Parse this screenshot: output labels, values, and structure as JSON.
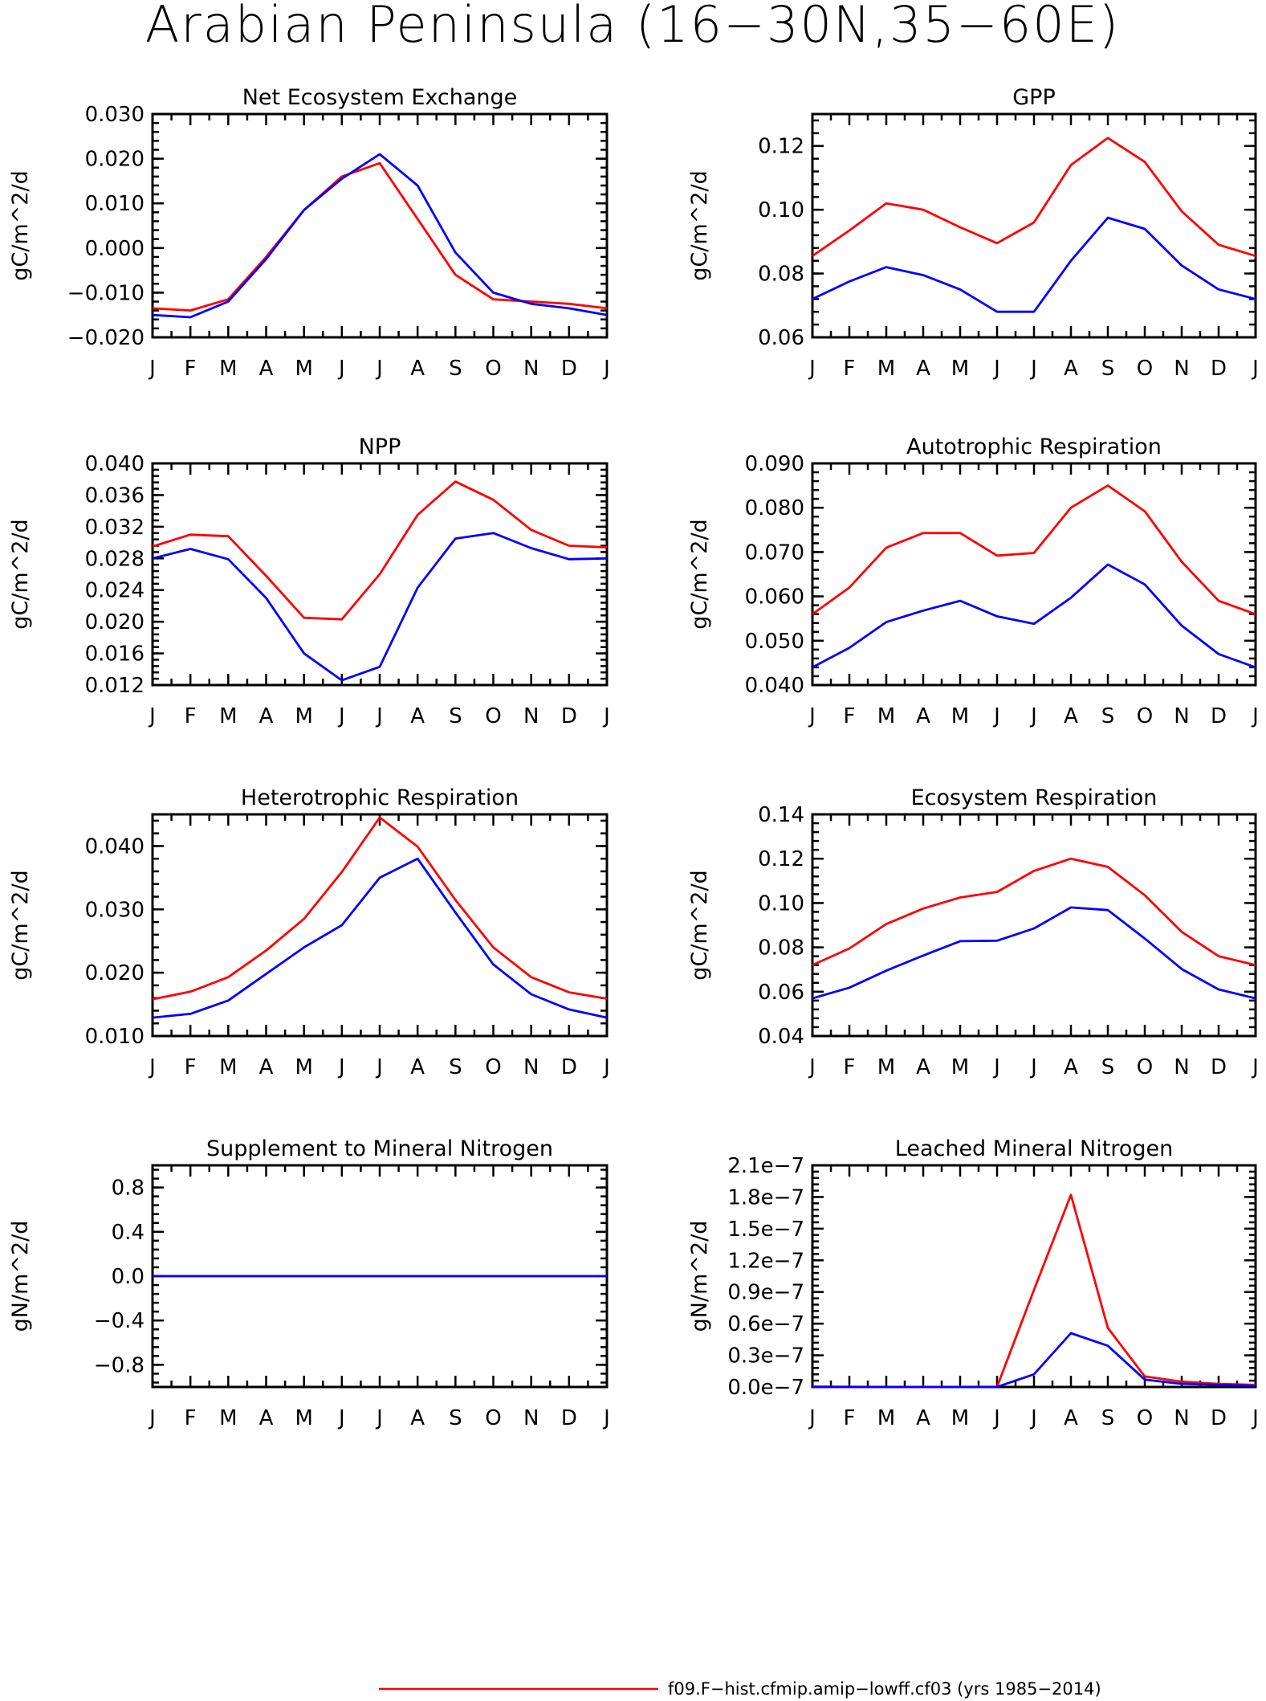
{
  "title": "Arabian Peninsula (16−30N,35−60E)",
  "colors": {
    "red": "#ff0000",
    "blue": "#0000ff",
    "axis": "#000000"
  },
  "legend": [
    {
      "label": "f09.F−hist.cfmip.amip−lowff.cf03 (yrs 1985−2014)",
      "color": "#ff0000"
    }
  ],
  "chart_data": [
    {
      "type": "line",
      "title": "Net Ecosystem Exchange",
      "ylabel": "gC/m^2/d",
      "categories": [
        "J",
        "F",
        "M",
        "A",
        "M",
        "J",
        "J",
        "A",
        "S",
        "O",
        "N",
        "D",
        "J"
      ],
      "ylim": [
        -0.02,
        0.03
      ],
      "yticks": [
        -0.02,
        -0.01,
        0.0,
        0.01,
        0.02,
        0.03
      ],
      "ytick_labels": [
        "−0.020",
        "−0.010",
        "0.000",
        "0.010",
        "0.020",
        "0.030"
      ],
      "series": [
        {
          "color": "#ff0000",
          "values": [
            -0.0135,
            -0.014,
            -0.0115,
            -0.002,
            0.0085,
            0.016,
            0.019,
            0.0065,
            -0.006,
            -0.0115,
            -0.012,
            -0.0125,
            -0.0135
          ]
        },
        {
          "color": "#0000ff",
          "values": [
            -0.015,
            -0.0155,
            -0.012,
            -0.0025,
            0.0085,
            0.0155,
            0.021,
            0.014,
            -0.001,
            -0.01,
            -0.0125,
            -0.0135,
            -0.015
          ]
        }
      ]
    },
    {
      "type": "line",
      "title": "GPP",
      "ylabel": "gC/m^2/d",
      "categories": [
        "J",
        "F",
        "M",
        "A",
        "M",
        "J",
        "J",
        "A",
        "S",
        "O",
        "N",
        "D",
        "J"
      ],
      "ylim": [
        0.06,
        0.13
      ],
      "yticks": [
        0.06,
        0.08,
        0.1,
        0.12
      ],
      "ytick_labels": [
        "0.06",
        "0.08",
        "0.10",
        "0.12"
      ],
      "series": [
        {
          "color": "#ff0000",
          "values": [
            0.0855,
            0.0935,
            0.102,
            0.1,
            0.0945,
            0.0895,
            0.096,
            0.114,
            0.1225,
            0.115,
            0.0995,
            0.089,
            0.0855
          ]
        },
        {
          "color": "#0000ff",
          "values": [
            0.072,
            0.0775,
            0.082,
            0.0795,
            0.075,
            0.068,
            0.068,
            0.084,
            0.0975,
            0.094,
            0.0825,
            0.075,
            0.072
          ]
        }
      ]
    },
    {
      "type": "line",
      "title": "NPP",
      "ylabel": "gC/m^2/d",
      "categories": [
        "J",
        "F",
        "M",
        "A",
        "M",
        "J",
        "J",
        "A",
        "S",
        "O",
        "N",
        "D",
        "J"
      ],
      "ylim": [
        0.012,
        0.04
      ],
      "yticks": [
        0.012,
        0.016,
        0.02,
        0.024,
        0.028,
        0.032,
        0.036,
        0.04
      ],
      "ytick_labels": [
        "0.012",
        "0.016",
        "0.020",
        "0.024",
        "0.028",
        "0.032",
        "0.036",
        "0.040"
      ],
      "series": [
        {
          "color": "#ff0000",
          "values": [
            0.0295,
            0.031,
            0.0308,
            0.0258,
            0.0205,
            0.0203,
            0.026,
            0.0335,
            0.0377,
            0.0354,
            0.0316,
            0.0296,
            0.0294
          ]
        },
        {
          "color": "#0000ff",
          "values": [
            0.028,
            0.0292,
            0.0279,
            0.023,
            0.016,
            0.0126,
            0.0143,
            0.0243,
            0.0305,
            0.0312,
            0.0293,
            0.0279,
            0.028
          ]
        }
      ]
    },
    {
      "type": "line",
      "title": "Autotrophic Respiration",
      "ylabel": "gC/m^2/d",
      "categories": [
        "J",
        "F",
        "M",
        "A",
        "M",
        "J",
        "J",
        "A",
        "S",
        "O",
        "N",
        "D",
        "J"
      ],
      "ylim": [
        0.04,
        0.09
      ],
      "yticks": [
        0.04,
        0.05,
        0.06,
        0.07,
        0.08,
        0.09
      ],
      "ytick_labels": [
        "0.040",
        "0.050",
        "0.060",
        "0.070",
        "0.080",
        "0.090"
      ],
      "series": [
        {
          "color": "#ff0000",
          "values": [
            0.056,
            0.062,
            0.071,
            0.0743,
            0.0743,
            0.0692,
            0.0698,
            0.08,
            0.085,
            0.0792,
            0.0678,
            0.059,
            0.056
          ]
        },
        {
          "color": "#0000ff",
          "values": [
            0.044,
            0.0484,
            0.0542,
            0.0568,
            0.059,
            0.0555,
            0.0538,
            0.0597,
            0.0672,
            0.0627,
            0.0534,
            0.047,
            0.044
          ]
        }
      ]
    },
    {
      "type": "line",
      "title": "Heterotrophic Respiration",
      "ylabel": "gC/m^2/d",
      "categories": [
        "J",
        "F",
        "M",
        "A",
        "M",
        "J",
        "J",
        "A",
        "S",
        "O",
        "N",
        "D",
        "J"
      ],
      "ylim": [
        0.01,
        0.045
      ],
      "yticks": [
        0.01,
        0.02,
        0.03,
        0.04
      ],
      "ytick_labels": [
        "0.010",
        "0.020",
        "0.030",
        "0.040"
      ],
      "series": [
        {
          "color": "#ff0000",
          "values": [
            0.0158,
            0.017,
            0.0193,
            0.0235,
            0.0285,
            0.0359,
            0.0445,
            0.0399,
            0.0315,
            0.024,
            0.0193,
            0.0169,
            0.0159
          ]
        },
        {
          "color": "#0000ff",
          "values": [
            0.0129,
            0.0135,
            0.0156,
            0.0198,
            0.024,
            0.0275,
            0.035,
            0.038,
            0.0295,
            0.0213,
            0.0166,
            0.0142,
            0.0129
          ]
        }
      ]
    },
    {
      "type": "line",
      "title": "Ecosystem Respiration",
      "ylabel": "gC/m^2/d",
      "categories": [
        "J",
        "F",
        "M",
        "A",
        "M",
        "J",
        "J",
        "A",
        "S",
        "O",
        "N",
        "D",
        "J"
      ],
      "ylim": [
        0.04,
        0.14
      ],
      "yticks": [
        0.04,
        0.06,
        0.08,
        0.1,
        0.12,
        0.14
      ],
      "ytick_labels": [
        "0.04",
        "0.06",
        "0.08",
        "0.10",
        "0.12",
        "0.14"
      ],
      "series": [
        {
          "color": "#ff0000",
          "values": [
            0.072,
            0.0795,
            0.0905,
            0.0975,
            0.1025,
            0.105,
            0.1145,
            0.12,
            0.1163,
            0.1035,
            0.087,
            0.076,
            0.072
          ]
        },
        {
          "color": "#0000ff",
          "values": [
            0.057,
            0.0618,
            0.0695,
            0.0763,
            0.0828,
            0.083,
            0.0885,
            0.098,
            0.0968,
            0.084,
            0.0702,
            0.061,
            0.057
          ]
        }
      ]
    },
    {
      "type": "line",
      "title": "Supplement to Mineral Nitrogen",
      "ylabel": "gN/m^2/d",
      "categories": [
        "J",
        "F",
        "M",
        "A",
        "M",
        "J",
        "J",
        "A",
        "S",
        "O",
        "N",
        "D",
        "J"
      ],
      "ylim": [
        -1.0,
        1.0
      ],
      "yticks": [
        -0.8,
        -0.4,
        0.0,
        0.4,
        0.8
      ],
      "ytick_labels": [
        "−0.8",
        "−0.4",
        "0.0",
        "0.4",
        "0.8"
      ],
      "series": [
        {
          "color": "#ff0000",
          "values": [
            0,
            0,
            0,
            0,
            0,
            0,
            0,
            0,
            0,
            0,
            0,
            0,
            0
          ]
        },
        {
          "color": "#0000ff",
          "values": [
            0,
            0,
            0,
            0,
            0,
            0,
            0,
            0,
            0,
            0,
            0,
            0,
            0
          ]
        }
      ]
    },
    {
      "type": "line",
      "title": "Leached Mineral Nitrogen",
      "ylabel": "gN/m^2/d",
      "categories": [
        "J",
        "F",
        "M",
        "A",
        "M",
        "J",
        "J",
        "A",
        "S",
        "O",
        "N",
        "D",
        "J"
      ],
      "ylim": [
        0.0,
        2.1e-07
      ],
      "yticks": [
        0.0,
        3e-08,
        6e-08,
        9e-08,
        1.2e-07,
        1.5e-07,
        1.8e-07,
        2.1e-07
      ],
      "ytick_labels": [
        "0.0e−7",
        "0.3e−7",
        "0.6e−7",
        "0.9e−7",
        "1.2e−7",
        "1.5e−7",
        "1.8e−7",
        "2.1e−7"
      ],
      "series": [
        {
          "color": "#ff0000",
          "values": [
            2e-10,
            1.5e-10,
            1e-10,
            5e-11,
            5e-11,
            2e-10,
            9.2e-08,
            1.82e-07,
            5.6e-08,
            1e-08,
            5e-09,
            3e-09,
            2e-09
          ]
        },
        {
          "color": "#0000ff",
          "values": [
            1.5e-10,
            1e-10,
            5e-11,
            3e-11,
            3e-11,
            1e-10,
            1.2e-08,
            5.1e-08,
            3.9e-08,
            7e-09,
            3e-09,
            2e-09,
            1e-09
          ]
        }
      ]
    }
  ]
}
